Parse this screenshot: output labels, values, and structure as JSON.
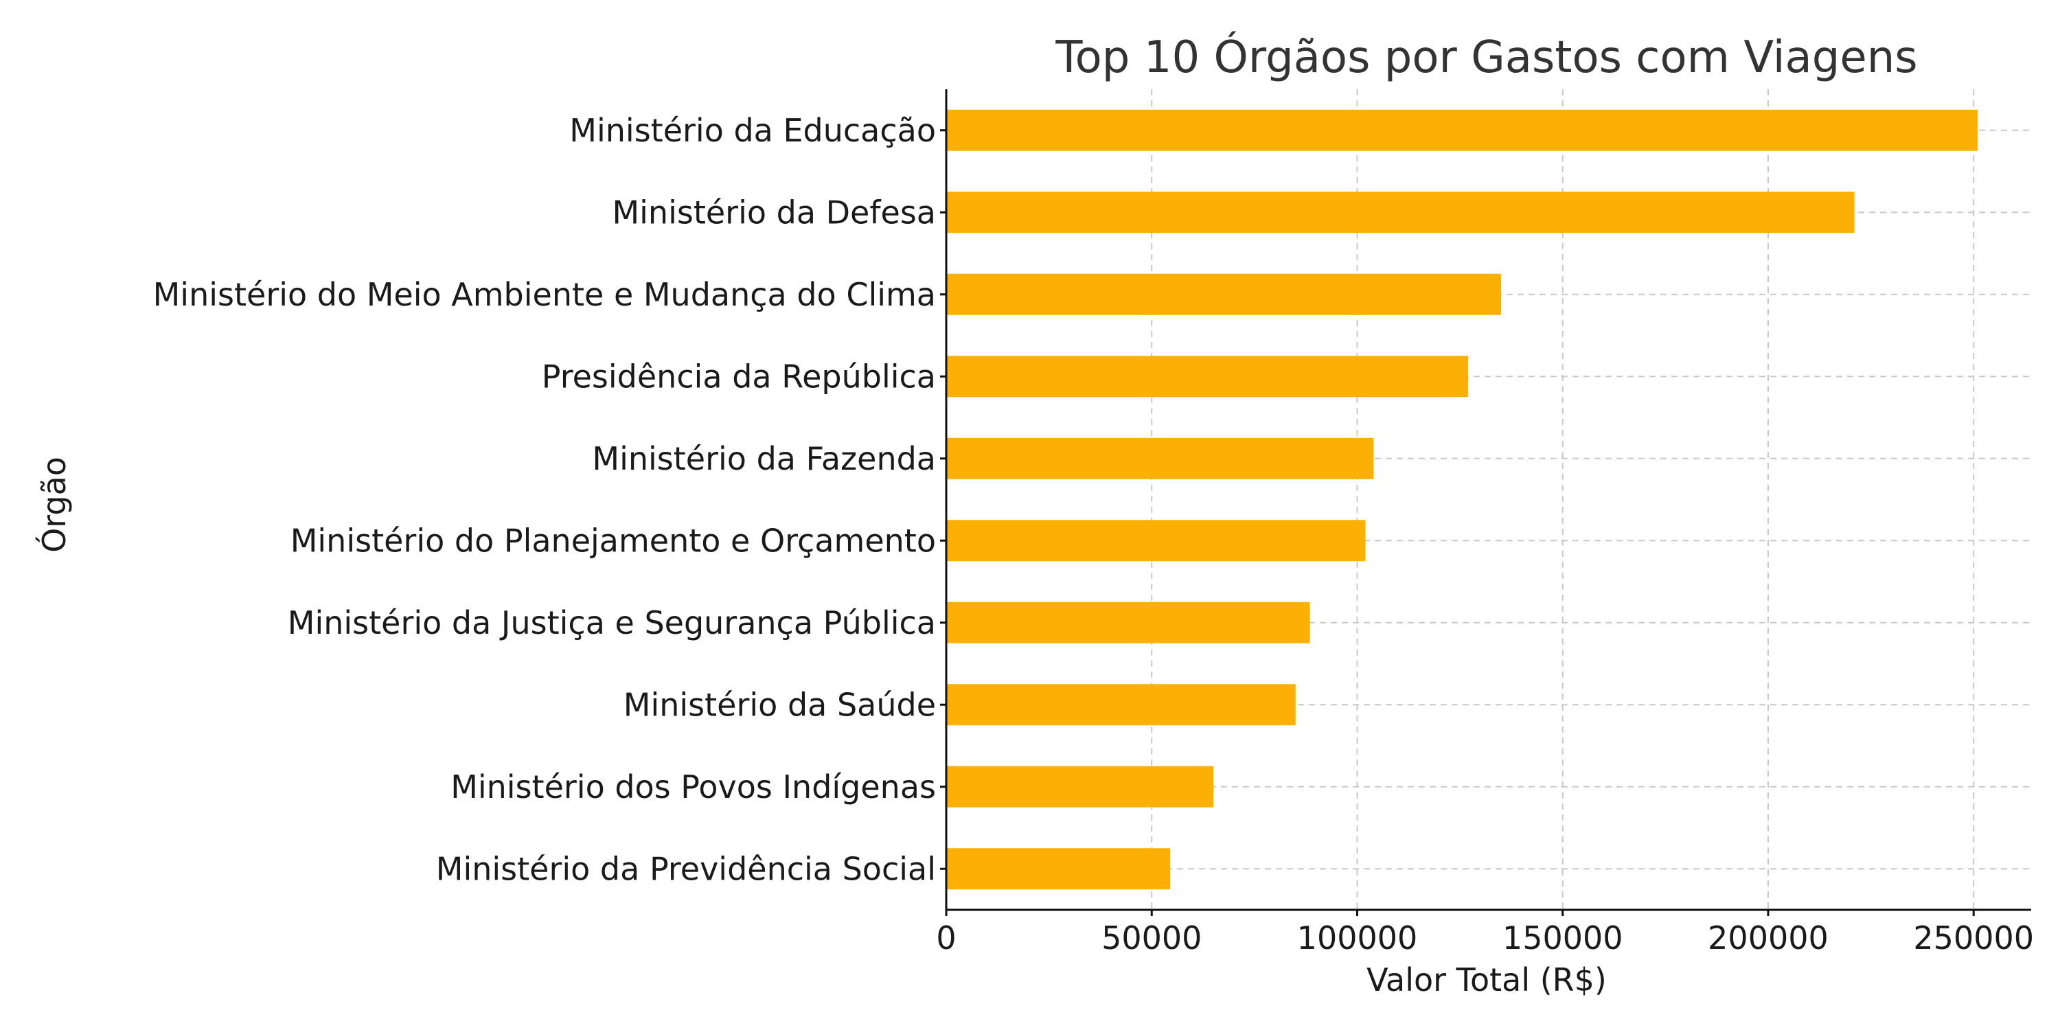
{
  "chart_data": {
    "type": "bar",
    "orientation": "horizontal",
    "title": "Top 10 Órgãos por Gastos com Viagens",
    "xlabel": "Valor Total (R$)",
    "ylabel": "Órgão",
    "categories": [
      "Ministério da Educação",
      "Ministério da Defesa",
      "Ministério do Meio Ambiente e Mudança do Clima",
      "Presidência da República",
      "Ministério da Fazenda",
      "Ministério do Planejamento e Orçamento",
      "Ministério da Justiça e Segurança Pública",
      "Ministério da Saúde",
      "Ministério dos Povos Indígenas",
      "Ministério da Previdência Social"
    ],
    "values": [
      251000,
      221000,
      135000,
      127000,
      104000,
      102000,
      88500,
      85000,
      65000,
      54500
    ],
    "xlim": [
      0,
      264000
    ],
    "xticks": [
      0,
      50000,
      100000,
      150000,
      200000,
      250000
    ],
    "grid": true,
    "bar_color": "#FCAF05"
  }
}
